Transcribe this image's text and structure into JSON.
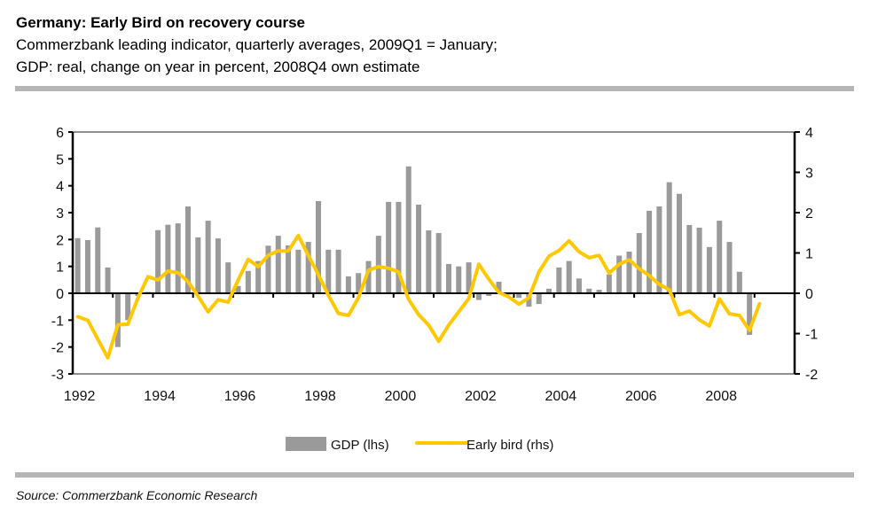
{
  "header": {
    "title": "Germany: Early Bird on recovery course",
    "subtitle_line1": "Commerzbank leading indicator, quarterly averages, 2009Q1 = January;",
    "subtitle_line2": "GDP: real, change on year in percent, 2008Q4 own estimate"
  },
  "footer": {
    "source": "Source: Commerzbank Economic Research"
  },
  "colors": {
    "gdp_bar": "#9a9a9a",
    "early_bird_line": "#ffc800",
    "axis": "#000000",
    "rule": "#b5b5b5"
  },
  "chart_data": {
    "type": "bar+line",
    "title": "Germany: Early Bird on recovery course",
    "x_start": "1992Q1",
    "x_end": "2009Q4",
    "x_tick_labels": [
      "1992",
      "1994",
      "1996",
      "1998",
      "2000",
      "2002",
      "2004",
      "2006",
      "2008"
    ],
    "y_left": {
      "label": "GDP (lhs)",
      "range": [
        -3,
        6
      ],
      "ticks": [
        -3,
        -2,
        -1,
        0,
        1,
        2,
        3,
        4,
        5,
        6
      ]
    },
    "y_right": {
      "label": "Early bird (rhs)",
      "range": [
        -2,
        4
      ],
      "ticks": [
        -2,
        -1,
        0,
        1,
        2,
        3,
        4
      ]
    },
    "grid": false,
    "legend": {
      "position": "bottom-center",
      "entries": [
        "GDP (lhs)",
        "Early bird (rhs)"
      ]
    },
    "series": [
      {
        "name": "GDP (lhs)",
        "type": "bar",
        "axis": "left",
        "start": "1992Q1",
        "values": [
          2.05,
          1.98,
          2.45,
          0.96,
          -2.0,
          -1.0,
          -0.1,
          0.05,
          2.35,
          2.55,
          2.6,
          3.23,
          2.08,
          2.7,
          2.04,
          1.15,
          0.27,
          0.83,
          1.2,
          1.77,
          2.14,
          1.78,
          1.62,
          1.91,
          3.43,
          1.62,
          1.62,
          0.63,
          0.75,
          1.2,
          2.14,
          3.4,
          3.4,
          4.72,
          3.3,
          2.34,
          2.24,
          1.09,
          1.0,
          1.15,
          -0.25,
          -0.1,
          0.43,
          -0.05,
          -0.17,
          -0.5,
          -0.4,
          0.17,
          0.96,
          1.2,
          0.55,
          0.17,
          0.13,
          0.7,
          1.4,
          1.55,
          2.24,
          3.07,
          3.23,
          4.13,
          3.7,
          2.54,
          2.44,
          1.72,
          2.7,
          1.91,
          0.8,
          -1.55
        ]
      },
      {
        "name": "Early bird (rhs)",
        "type": "line",
        "axis": "right",
        "start": "1992Q1",
        "values": [
          -0.58,
          -0.67,
          -1.14,
          -1.6,
          -0.78,
          -0.77,
          -0.12,
          0.41,
          0.33,
          0.55,
          0.51,
          0.29,
          -0.07,
          -0.46,
          -0.16,
          -0.22,
          0.33,
          0.84,
          0.66,
          0.94,
          1.05,
          1.05,
          1.43,
          0.94,
          0.46,
          -0.05,
          -0.5,
          -0.55,
          -0.11,
          0.57,
          0.66,
          0.62,
          0.53,
          -0.15,
          -0.53,
          -0.79,
          -1.19,
          -0.79,
          -0.46,
          -0.13,
          0.72,
          0.35,
          0.02,
          -0.09,
          -0.27,
          -0.11,
          0.53,
          0.92,
          1.06,
          1.3,
          1.03,
          0.88,
          0.94,
          0.5,
          0.72,
          0.83,
          0.61,
          0.44,
          0.22,
          0.09,
          -0.53,
          -0.44,
          -0.66,
          -0.81,
          -0.14,
          -0.51,
          -0.55,
          -0.92,
          -0.26
        ]
      }
    ]
  }
}
